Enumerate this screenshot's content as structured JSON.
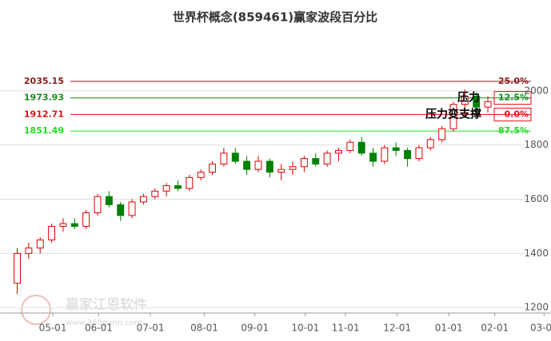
{
  "chart_data": {
    "type": "candlestick",
    "title": "世界杯概念(859461)赢家波段百分比",
    "xlim": [
      -1.5,
      46.5
    ],
    "ylim": [
      1180,
      2070
    ],
    "yticks": [
      1200,
      1400,
      1600,
      1800,
      2000
    ],
    "xticks": [
      {
        "value": 3.1,
        "label": "05-01"
      },
      {
        "value": 7.1,
        "label": "06-01"
      },
      {
        "value": 11.6,
        "label": "07-01"
      },
      {
        "value": 16.3,
        "label": "08-01"
      },
      {
        "value": 20.7,
        "label": "09-01"
      },
      {
        "value": 25.1,
        "label": "10-01"
      },
      {
        "value": 28.6,
        "label": "11-01"
      },
      {
        "value": 33.1,
        "label": "12-01"
      },
      {
        "value": 37.6,
        "label": "01-01"
      },
      {
        "value": 41.6,
        "label": "02-01"
      },
      {
        "value": 45.9,
        "label": "03-01"
      }
    ],
    "grid": true,
    "up_color": "#e00000",
    "down_color": "#008000",
    "open": [
      1290,
      1400,
      1420,
      1450,
      1500,
      1510,
      1500,
      1550,
      1610,
      1580,
      1540,
      1590,
      1610,
      1630,
      1650,
      1640,
      1680,
      1700,
      1730,
      1770,
      1740,
      1710,
      1740,
      1700,
      1710,
      1720,
      1750,
      1730,
      1770,
      1780,
      1810,
      1770,
      1740,
      1790,
      1780,
      1750,
      1790,
      1820,
      1860,
      1950,
      1980,
      1940
    ],
    "high": [
      1420,
      1440,
      1460,
      1510,
      1530,
      1530,
      1560,
      1620,
      1630,
      1590,
      1600,
      1620,
      1640,
      1660,
      1670,
      1690,
      1710,
      1740,
      1790,
      1790,
      1760,
      1760,
      1750,
      1730,
      1740,
      1760,
      1770,
      1780,
      1790,
      1820,
      1830,
      1790,
      1800,
      1810,
      1790,
      1800,
      1830,
      1870,
      1960,
      2005,
      1995,
      1980
    ],
    "low": [
      1250,
      1380,
      1400,
      1440,
      1480,
      1490,
      1490,
      1540,
      1570,
      1520,
      1530,
      1580,
      1600,
      1610,
      1630,
      1630,
      1670,
      1690,
      1720,
      1730,
      1690,
      1700,
      1680,
      1670,
      1690,
      1700,
      1720,
      1720,
      1740,
      1770,
      1760,
      1720,
      1730,
      1760,
      1720,
      1740,
      1780,
      1810,
      1850,
      1900,
      1920,
      1920
    ],
    "close": [
      1400,
      1420,
      1450,
      1500,
      1510,
      1500,
      1550,
      1610,
      1580,
      1540,
      1590,
      1610,
      1630,
      1650,
      1640,
      1680,
      1700,
      1730,
      1770,
      1740,
      1710,
      1740,
      1700,
      1710,
      1720,
      1750,
      1730,
      1770,
      1780,
      1810,
      1770,
      1740,
      1790,
      1780,
      1750,
      1790,
      1820,
      1860,
      1950,
      1980,
      1940,
      1960
    ],
    "levels": [
      {
        "value": 2035.15,
        "percent": "25.0%",
        "color": "#8b1a1a",
        "boxed": false
      },
      {
        "value": 1973.93,
        "percent": "12.5%",
        "color": "#1a8a1a",
        "boxed": true
      },
      {
        "value": 1912.71,
        "percent": "0.0%",
        "color": "#e01010",
        "boxed": true
      },
      {
        "value": 1851.49,
        "percent": "87.5%",
        "color": "#22dd22",
        "boxed": false
      }
    ],
    "annotations": [
      "压力",
      "压力变支撑"
    ],
    "watermark": "赢家江恩软件",
    "watermark_url": "www.360gann.com"
  }
}
